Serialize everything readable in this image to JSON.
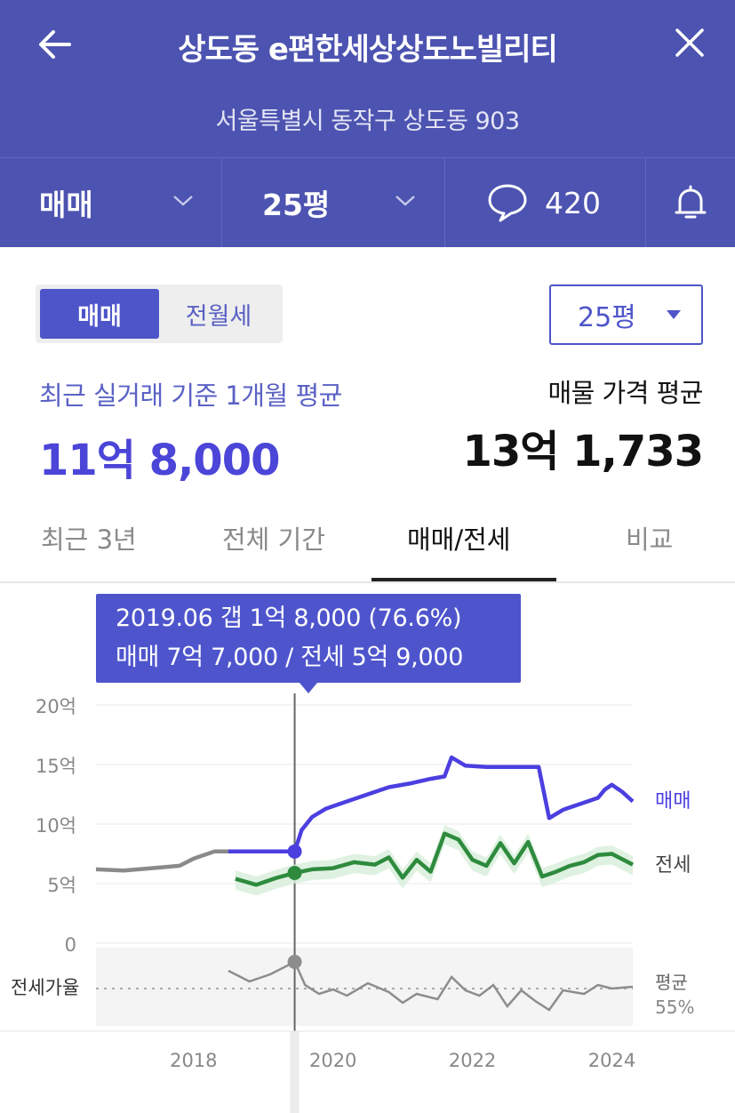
{
  "header": {
    "title": "상도동 e편한세상상도노빌리티",
    "address": "서울특별시 동작구 상도동 903",
    "trade_type": "매매",
    "size": "25평",
    "comment_count": "420"
  },
  "filters": {
    "segment": [
      {
        "label": "매매",
        "active": true
      },
      {
        "label": "전월세",
        "active": false
      }
    ],
    "size_select": "25평"
  },
  "summary": {
    "recent_label": "최근 실거래 기준 1개월 평균",
    "recent_value": "11억 8,000",
    "listing_label": "매물 가격 평균",
    "listing_value": "13억 1,733"
  },
  "tabs": [
    {
      "label": "최근 3년",
      "active": false
    },
    {
      "label": "전체 기간",
      "active": false
    },
    {
      "label": "매매/전세",
      "active": true
    },
    {
      "label": "비교",
      "active": false
    }
  ],
  "tooltip": {
    "line1": "2019.06  갭 1억 8,000 (76.6%)",
    "line2": "매매 7억 7,000 / 전세 5억 9,000"
  },
  "colors": {
    "header_bg": "#4c53b0",
    "accent": "#4e55c9",
    "sale_line": "#4b3fe0",
    "jeonse_line": "#2e8b3e",
    "history_line": "#8a8a8a"
  },
  "icons": {
    "back": "arrow-left-icon",
    "close": "close-icon",
    "comment": "speech-bubble-icon",
    "notify": "bell-icon"
  },
  "chart_data": {
    "type": "line",
    "x_tick_labels": [
      "2018",
      "2020",
      "2022",
      "2024"
    ],
    "xlim": [
      2016.6,
      2024.3
    ],
    "y_tick_labels": [
      "20억",
      "15억",
      "10억",
      "5억",
      "0"
    ],
    "y_ticks": [
      20,
      15,
      10,
      5,
      0
    ],
    "ylim": [
      0,
      20
    ],
    "y_unit": "억",
    "selected_x": 2019.45,
    "grid": true,
    "series": [
      {
        "name": "매매",
        "color": "#4b3fe0",
        "x": [
          2018.5,
          2019.45,
          2019.55,
          2019.7,
          2019.9,
          2020.2,
          2020.5,
          2020.8,
          2021.1,
          2021.4,
          2021.6,
          2021.7,
          2021.9,
          2022.2,
          2022.5,
          2022.8,
          2022.95,
          2023.1,
          2023.3,
          2023.6,
          2023.8,
          2023.9,
          2024.0,
          2024.15,
          2024.3
        ],
        "y": [
          7.7,
          7.7,
          9.5,
          10.6,
          11.3,
          11.9,
          12.5,
          13.1,
          13.4,
          13.8,
          14.0,
          15.6,
          14.9,
          14.8,
          14.8,
          14.8,
          14.8,
          10.5,
          11.2,
          11.8,
          12.2,
          12.9,
          13.3,
          12.7,
          11.9
        ]
      },
      {
        "name": "전세",
        "color": "#2e8b3e",
        "x": [
          2018.6,
          2018.9,
          2019.2,
          2019.45,
          2019.7,
          2020.0,
          2020.3,
          2020.6,
          2020.8,
          2021.0,
          2021.2,
          2021.4,
          2021.6,
          2021.8,
          2022.0,
          2022.2,
          2022.4,
          2022.6,
          2022.8,
          2023.0,
          2023.2,
          2023.4,
          2023.6,
          2023.8,
          2024.0,
          2024.3
        ],
        "y": [
          5.4,
          4.9,
          5.5,
          5.9,
          6.2,
          6.3,
          6.8,
          6.6,
          7.2,
          5.5,
          7.0,
          6.0,
          9.2,
          8.7,
          7.0,
          6.5,
          8.4,
          6.7,
          8.5,
          5.6,
          6.0,
          6.5,
          6.8,
          7.4,
          7.5,
          6.6
        ]
      },
      {
        "name": "",
        "color": "#8a8a8a",
        "x": [
          2016.6,
          2017.0,
          2017.4,
          2017.8,
          2018.0,
          2018.3,
          2018.5
        ],
        "y": [
          6.2,
          6.1,
          6.3,
          6.5,
          7.1,
          7.7,
          7.7
        ]
      }
    ],
    "sale_label": "매매",
    "jeonse_label": "전세",
    "ratio_label": "전세가율",
    "ratio_avg_label": "평균",
    "ratio_avg_value": "55%"
  }
}
